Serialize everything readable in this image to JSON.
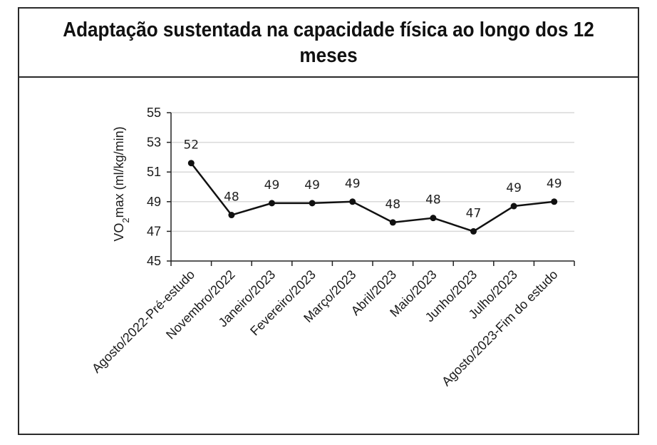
{
  "colors": {
    "line": "#111111",
    "grid": "#d9d9d9",
    "axis": "#222222",
    "frame": "#2a2a2a"
  },
  "chart_data": {
    "type": "line",
    "title": "Adaptação sustentada na capacidade física ao longo dos 12 meses",
    "xlabel": "",
    "ylabel": {
      "prefix": "VO",
      "subscript": "2",
      "suffix": "max (ml/kg/min)"
    },
    "ylim": [
      45,
      55
    ],
    "yticks": [
      45,
      47,
      49,
      51,
      53,
      55
    ],
    "grid": true,
    "categories": [
      "Agosto/2022-Pré-estudo",
      "Novembro/2022",
      "Janeiro/2023",
      "Fevereiro/2023",
      "Março/2023",
      "Abril/2023",
      "Maio/2023",
      "Junho/2023",
      "Julho/2023",
      "Agosto/2023-Fim do estudo"
    ],
    "values": [
      51.6,
      48.1,
      48.9,
      48.9,
      49.0,
      47.6,
      47.9,
      47.0,
      48.7,
      49.0
    ],
    "data_labels": [
      "52",
      "48",
      "49",
      "49",
      "49",
      "48",
      "48",
      "47",
      "49",
      "49"
    ]
  }
}
